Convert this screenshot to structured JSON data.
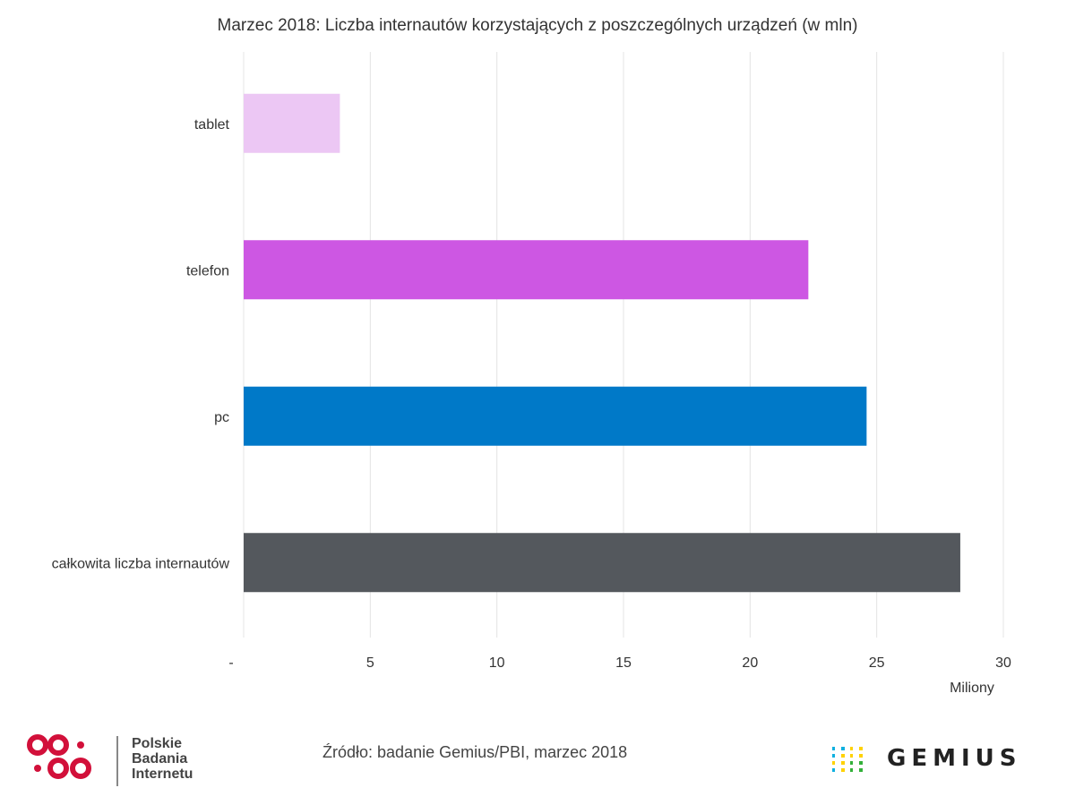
{
  "chart_data": {
    "type": "bar",
    "orientation": "horizontal",
    "title": "Marzec 2018: Liczba internautów korzystających z poszczególnych urządzeń (w mln)",
    "categories": [
      "tablet",
      "telefon",
      "pc",
      "całkowita liczba internautów"
    ],
    "values": [
      3.8,
      22.3,
      24.6,
      28.3
    ],
    "colors": [
      "#ecc7f4",
      "#cd57e3",
      "#0079c8",
      "#54585d"
    ],
    "xlim": [
      0,
      30
    ],
    "x_ticks": [
      {
        "value": 0,
        "label": "-"
      },
      {
        "value": 5,
        "label": "5"
      },
      {
        "value": 10,
        "label": "10"
      },
      {
        "value": 15,
        "label": "15"
      },
      {
        "value": 20,
        "label": "20"
      },
      {
        "value": 25,
        "label": "25"
      },
      {
        "value": 30,
        "label": "30"
      }
    ],
    "xlabel": "Miliony",
    "ylabel": "",
    "grid": true,
    "gridline_color": "#e4e4e4"
  },
  "footer": {
    "source": "Źródło: badanie Gemius/PBI, marzec 2018",
    "pbi_lines": [
      "Polskie",
      "Badania",
      "Internetu"
    ],
    "gemius_name": "GEMIUS",
    "pbi_color": "#d2103a",
    "gemius_colors": [
      "#0fb0e0",
      "#ffd200",
      "#33b03a"
    ]
  }
}
